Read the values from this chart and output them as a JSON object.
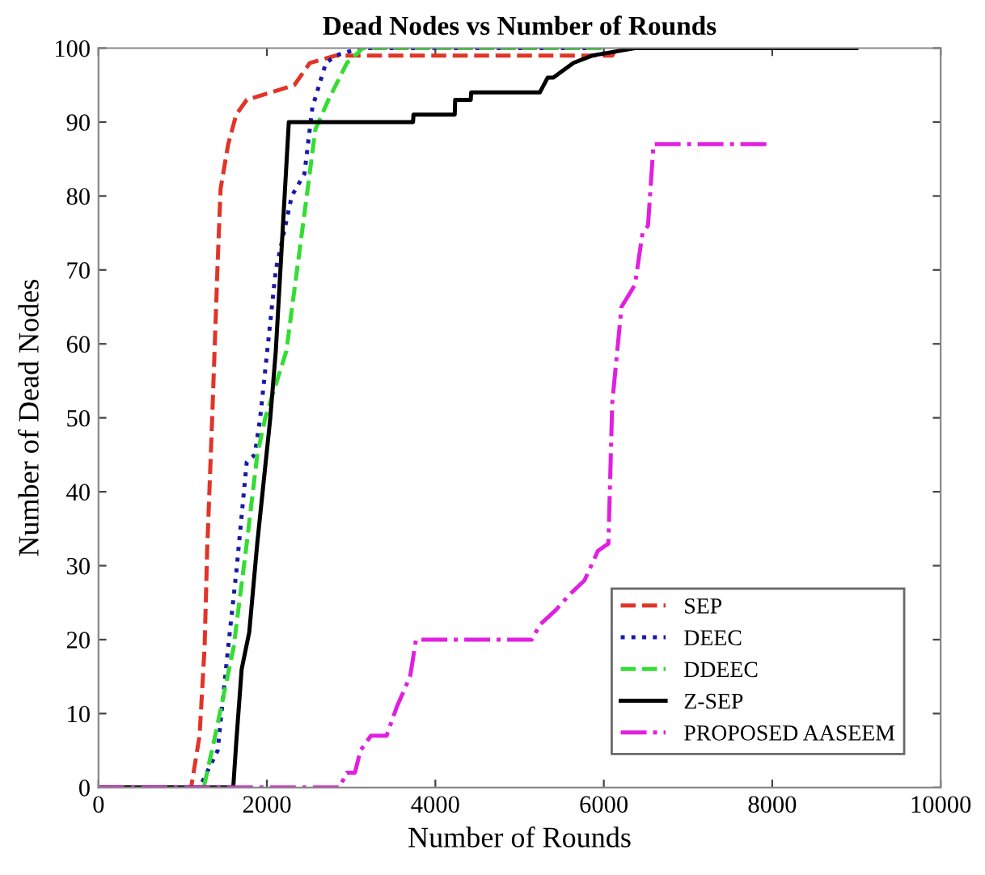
{
  "chart_data": {
    "type": "line",
    "title": "Dead Nodes vs Number of Rounds",
    "xlabel": "Number of Rounds",
    "ylabel": "Number of Dead Nodes",
    "xlim": [
      0,
      10000
    ],
    "xticks": [
      0,
      2000,
      4000,
      6000,
      8000,
      10000
    ],
    "ylim": [
      0,
      100
    ],
    "yticks": [
      0,
      10,
      20,
      30,
      40,
      50,
      60,
      70,
      80,
      90,
      100
    ],
    "grid": false,
    "legend": "bottom right",
    "marker": "none",
    "series": [
      {
        "name": "SEP",
        "color": "#e03528",
        "line_style": "dashed",
        "x": [
          0,
          1100,
          1200,
          1260,
          1290,
          1350,
          1415,
          1450,
          1540,
          1635,
          1760,
          2325,
          2510,
          2820,
          6100,
          6150
        ],
        "values": [
          0,
          0,
          7,
          19,
          32,
          50,
          71,
          81,
          87,
          91,
          93,
          95,
          98,
          99,
          99,
          100
        ]
      },
      {
        "name": "DEEC",
        "color": "#1a1aa8",
        "line_style": "dotted",
        "x": [
          0,
          1200,
          1415,
          1540,
          1635,
          1760,
          1855,
          1920,
          2105,
          2295,
          2445,
          2540,
          2700,
          2820,
          3100,
          6000
        ],
        "values": [
          0,
          0,
          5,
          19,
          29,
          44,
          45,
          50,
          70,
          80,
          83,
          92,
          98,
          99,
          100,
          100
        ]
      },
      {
        "name": "DDEEC",
        "color": "#33dd33",
        "line_style": "dashed",
        "x": [
          0,
          1250,
          1385,
          1605,
          1760,
          1885,
          1980,
          2230,
          2450,
          2575,
          2730,
          2950,
          3140,
          6000
        ],
        "values": [
          0,
          0,
          7,
          19,
          33,
          45,
          50,
          59,
          78,
          89,
          93,
          98,
          100,
          100
        ]
      },
      {
        "name": "Z-SEP",
        "color": "#000000",
        "line_style": "solid",
        "x": [
          0,
          1600,
          1635,
          1700,
          1790,
          1885,
          2040,
          2105,
          2200,
          2260,
          3735,
          3740,
          4230,
          4235,
          4420,
          4425,
          5240,
          5333,
          5400,
          5640,
          5865,
          6370,
          9000
        ],
        "values": [
          0,
          0,
          6,
          16,
          21,
          33,
          50,
          59,
          78,
          90,
          90,
          91,
          91,
          93,
          93,
          94,
          94,
          96,
          96,
          98,
          99,
          100,
          100
        ]
      },
      {
        "name": "PROPOSED AASEEM",
        "color": "#e020e0",
        "line_style": "dashdot",
        "x": [
          0,
          2860,
          2950,
          3045,
          3110,
          3235,
          3420,
          3545,
          3700,
          3770,
          5145,
          5240,
          5430,
          5585,
          5770,
          5930,
          6055,
          6100,
          6210,
          6370,
          6460,
          6525,
          6590,
          8000
        ],
        "values": [
          0,
          0,
          2,
          2,
          5,
          7,
          7,
          11,
          15,
          20,
          20,
          22,
          24,
          26,
          28,
          32,
          33,
          52,
          65,
          68,
          75,
          76,
          87,
          87
        ]
      }
    ]
  }
}
